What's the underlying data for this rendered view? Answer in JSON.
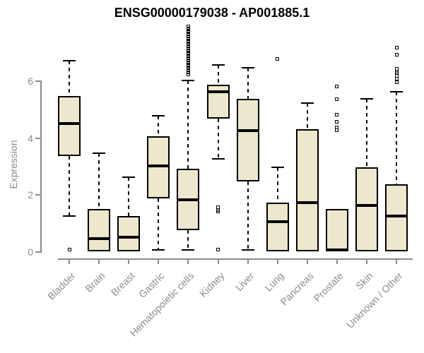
{
  "chart_data": {
    "type": "box",
    "title": "ENSG00000179038 - AP001885.1",
    "ylabel": "Expression",
    "xlabel": "",
    "y_ticks": [
      0,
      2,
      4,
      6
    ],
    "ylim": [
      0,
      8
    ],
    "grid": false,
    "legend": "none",
    "categories": [
      "Bladder",
      "Brain",
      "Breast",
      "Gastric",
      "Hematopoietic cells",
      "Kidney",
      "Liver",
      "Lung",
      "Pancreas",
      "Prostate",
      "Skin",
      "Unknown / Other"
    ],
    "series": [
      {
        "name": "Bladder",
        "whisker_low": 1.25,
        "q1": 3.35,
        "median": 4.5,
        "q3": 5.45,
        "whisker_high": 6.7,
        "outliers": [
          0.05
        ]
      },
      {
        "name": "Brain",
        "whisker_low": 0,
        "q1": 0,
        "median": 0.45,
        "q3": 1.5,
        "whisker_high": 3.45,
        "outliers": []
      },
      {
        "name": "Breast",
        "whisker_low": 0,
        "q1": 0,
        "median": 0.5,
        "q3": 1.25,
        "whisker_high": 2.6,
        "outliers": []
      },
      {
        "name": "Gastric",
        "whisker_low": 0.05,
        "q1": 1.85,
        "median": 3.0,
        "q3": 4.05,
        "whisker_high": 4.75,
        "outliers": []
      },
      {
        "name": "Hematopoietic cells",
        "whisker_low": 0.05,
        "q1": 0.75,
        "median": 1.8,
        "q3": 2.9,
        "whisker_high": 6.0,
        "outliers": [
          7.9,
          7.83,
          7.76,
          7.69,
          7.62,
          7.55,
          7.48,
          7.41,
          7.34,
          7.27,
          7.2,
          7.13,
          7.06,
          6.99,
          6.92,
          6.85,
          6.78,
          6.71,
          6.64,
          6.57,
          6.5,
          6.43,
          6.36,
          6.29,
          6.22
        ]
      },
      {
        "name": "Kidney",
        "whisker_low": 3.25,
        "q1": 4.65,
        "median": 5.6,
        "q3": 5.85,
        "whisker_high": 6.55,
        "outliers": [
          1.55,
          1.45,
          1.4,
          0.05
        ]
      },
      {
        "name": "Liver",
        "whisker_low": 0.05,
        "q1": 2.45,
        "median": 4.25,
        "q3": 5.35,
        "whisker_high": 6.45,
        "outliers": []
      },
      {
        "name": "Lung",
        "whisker_low": 0,
        "q1": 0,
        "median": 1.05,
        "q3": 1.7,
        "whisker_high": 2.95,
        "outliers": [
          6.75
        ]
      },
      {
        "name": "Pancreas",
        "whisker_low": 0,
        "q1": 0,
        "median": 1.7,
        "q3": 4.3,
        "whisker_high": 5.2,
        "outliers": []
      },
      {
        "name": "Prostate",
        "whisker_low": 0,
        "q1": 0,
        "median": 0.05,
        "q3": 1.5,
        "whisker_high": 1.5,
        "outliers": [
          5.8,
          5.35,
          4.8,
          4.55,
          4.35,
          4.25
        ]
      },
      {
        "name": "Skin",
        "whisker_low": 0,
        "q1": 0,
        "median": 1.6,
        "q3": 2.95,
        "whisker_high": 5.35,
        "outliers": []
      },
      {
        "name": "Unknown / Other",
        "whisker_low": 0,
        "q1": 0,
        "median": 1.25,
        "q3": 2.35,
        "whisker_high": 5.6,
        "outliers": [
          7.15,
          6.9,
          6.4,
          6.3,
          6.25,
          6.15,
          6.05,
          5.95
        ]
      }
    ]
  },
  "colors": {
    "background": "#ffffff",
    "box_fill": "#ede8cd",
    "box_stroke": "#000000",
    "axis": "#8b8b8b",
    "label_text": "#8b8b8b",
    "title_text": "#000000"
  }
}
